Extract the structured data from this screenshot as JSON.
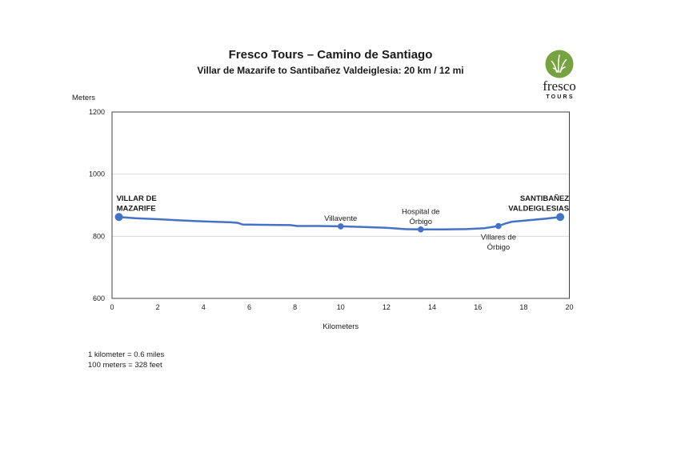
{
  "header": {
    "title": "Fresco Tours – Camino de Santiago",
    "subtitle": "Villar de Mazarife to Santibañez Valdeiglesia: 20 km / 12 mi"
  },
  "logo": {
    "wordmark": "fresco",
    "tagline": "TOURS",
    "circle_color": "#77a240",
    "leaf_color": "#ffffff",
    "wordmark_color": "#4679ae",
    "tagline_color": "#77a240",
    "icon": "grass-leaf-icon"
  },
  "footnotes": [
    "1 kilometer = 0.6 miles",
    "100 meters = 328 feet"
  ],
  "chart_data": {
    "type": "line",
    "title": "",
    "xlabel": "Kilometers",
    "ylabel": "Meters",
    "xlim": [
      0,
      20
    ],
    "ylim": [
      600,
      1200
    ],
    "x_ticks": [
      0,
      2,
      4,
      6,
      8,
      10,
      12,
      14,
      16,
      18,
      20
    ],
    "y_ticks": [
      600,
      800,
      1000,
      1200
    ],
    "gridlines_y": [
      800,
      1000
    ],
    "grid": "horizontal-only",
    "legend": "none",
    "line_color": "#4472c4",
    "marker_color": "#4472c4",
    "gridline_color": "#d9d9d9",
    "border_color": "#404040",
    "profile": [
      [
        0.3,
        862
      ],
      [
        1.0,
        858
      ],
      [
        2.0,
        855
      ],
      [
        3.0,
        851
      ],
      [
        4.0,
        848
      ],
      [
        5.2,
        845
      ],
      [
        5.5,
        843
      ],
      [
        5.7,
        838
      ],
      [
        6.5,
        837
      ],
      [
        7.8,
        836
      ],
      [
        8.1,
        833
      ],
      [
        9.0,
        833
      ],
      [
        10.0,
        832
      ],
      [
        11.0,
        830
      ],
      [
        12.0,
        827
      ],
      [
        12.8,
        823
      ],
      [
        13.5,
        822
      ],
      [
        14.5,
        822
      ],
      [
        15.5,
        823
      ],
      [
        16.3,
        826
      ],
      [
        16.9,
        833
      ],
      [
        17.2,
        841
      ],
      [
        17.5,
        847
      ],
      [
        18.0,
        850
      ],
      [
        19.0,
        857
      ],
      [
        19.6,
        862
      ]
    ],
    "points": [
      {
        "km": 0.3,
        "elevation_m": 862,
        "label": "VILLAR DE MAZARIFE",
        "label_lines": [
          "VILLAR DE",
          "MAZARIFE"
        ],
        "bold": true,
        "marker": "large",
        "label_position": "above",
        "label_align": "left"
      },
      {
        "km": 10.0,
        "elevation_m": 832,
        "label": "Villavente",
        "label_lines": [
          "Villavente"
        ],
        "bold": false,
        "marker": "small",
        "label_position": "above",
        "label_align": "center"
      },
      {
        "km": 13.5,
        "elevation_m": 822,
        "label": "Hospital de Órbigo",
        "label_lines": [
          "Hospital de",
          "Órbigo"
        ],
        "bold": false,
        "marker": "small",
        "label_position": "above",
        "label_align": "center"
      },
      {
        "km": 16.9,
        "elevation_m": 833,
        "label": "Villares de Órbigo",
        "label_lines": [
          "Villares de",
          "Órbigo"
        ],
        "bold": false,
        "marker": "small",
        "label_position": "below",
        "label_align": "center"
      },
      {
        "km": 19.6,
        "elevation_m": 862,
        "label": "SANTIBAÑEZ VALDEIGLESIAS",
        "label_lines": [
          "SANTIBAÑEZ",
          "VALDEIGLESIAS"
        ],
        "bold": true,
        "marker": "large",
        "label_position": "above",
        "label_align": "right"
      }
    ]
  }
}
